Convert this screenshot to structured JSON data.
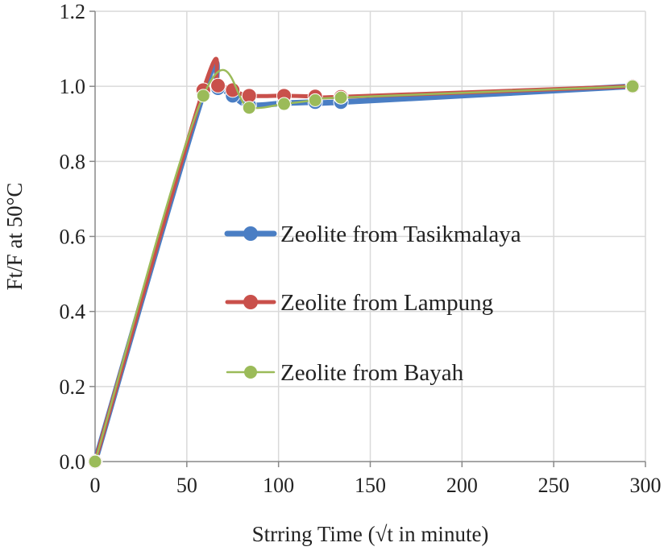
{
  "chart_data": {
    "type": "line",
    "xlabel": "Strring Time (√t in minute)",
    "ylabel": "Ft/F  at  50°C",
    "xlim": [
      0,
      300
    ],
    "ylim": [
      0,
      1.2
    ],
    "x_ticks": [
      "0",
      "50",
      "100",
      "150",
      "200",
      "250",
      "300"
    ],
    "y_ticks": [
      "0.0",
      "0.2",
      "0.4",
      "0.6",
      "0.8",
      "1.0",
      "1.2"
    ],
    "grid": true,
    "legend_position": "center-right",
    "series": [
      {
        "name": "Zeolite from Tasikmalaya",
        "color": "#4a7ec4",
        "line_width": "thick",
        "x": [
          0,
          59,
          67,
          75,
          84,
          103,
          120,
          134,
          293
        ],
        "y": [
          0.0,
          0.98,
          0.995,
          0.975,
          0.95,
          0.955,
          0.958,
          0.958,
          1.0
        ]
      },
      {
        "name": "Zeolite from Lampung",
        "color": "#c9504b",
        "line_width": "medium",
        "x": [
          0,
          59,
          67,
          75,
          84,
          103,
          120,
          134,
          293
        ],
        "y": [
          0.0,
          0.99,
          1.002,
          0.99,
          0.975,
          0.975,
          0.973,
          0.972,
          1.0
        ]
      },
      {
        "name": "Zeolite from Bayah",
        "color": "#9bbb59",
        "line_width": "thin",
        "x": [
          0,
          59,
          84,
          103,
          120,
          134,
          293
        ],
        "y": [
          0.0,
          0.975,
          0.943,
          0.953,
          0.963,
          0.97,
          1.0
        ]
      }
    ]
  }
}
